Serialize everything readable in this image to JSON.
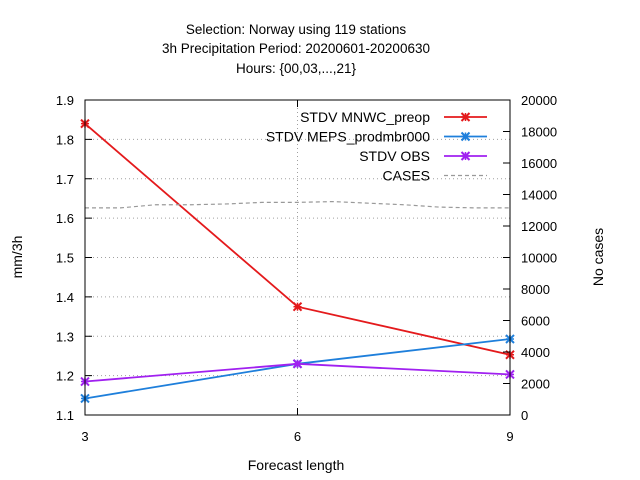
{
  "chart_data": {
    "type": "line",
    "title_lines": [
      "Selection: Norway using   119 stations",
      "3h Precipitation   Period: 20200601-20200630",
      "Hours: {00,03,...,21}"
    ],
    "xlabel": "Forecast length",
    "ylabel": "mm/3h",
    "y2label": "No cases",
    "x": [
      3,
      6,
      9
    ],
    "x_ticks": [
      "3",
      "6",
      "9"
    ],
    "xlim": [
      3,
      9
    ],
    "ylim": [
      1.1,
      1.9
    ],
    "y_ticks": [
      "1.1",
      "1.2",
      "1.3",
      "1.4",
      "1.5",
      "1.6",
      "1.7",
      "1.8",
      "1.9"
    ],
    "y2lim": [
      0,
      20000
    ],
    "y2_ticks": [
      "0",
      "2000",
      "4000",
      "6000",
      "8000",
      "10000",
      "12000",
      "14000",
      "16000",
      "18000",
      "20000"
    ],
    "grid": true,
    "legend_position": "top-right",
    "series": [
      {
        "name": "STDV MNWC_preop",
        "axis": "y",
        "color": "#e41a1c",
        "marker": "x",
        "values": [
          1.84,
          1.375,
          1.253
        ]
      },
      {
        "name": "STDV MEPS_prodmbr000",
        "axis": "y",
        "color": "#1e7fdb",
        "marker": "x",
        "values": [
          1.142,
          1.23,
          1.293
        ]
      },
      {
        "name": "STDV OBS",
        "axis": "y",
        "color": "#a020f0",
        "marker": "x",
        "values": [
          1.185,
          1.23,
          1.203
        ]
      },
      {
        "name": "CASES",
        "axis": "y2",
        "color": "#999999",
        "dashed": true,
        "x": [
          3,
          3.5,
          4,
          4.5,
          5,
          5.5,
          6,
          6.5,
          7,
          7.5,
          8,
          8.5,
          9
        ],
        "values": [
          13150,
          13150,
          13350,
          13350,
          13400,
          13500,
          13500,
          13550,
          13450,
          13350,
          13200,
          13150,
          13150
        ]
      }
    ]
  }
}
